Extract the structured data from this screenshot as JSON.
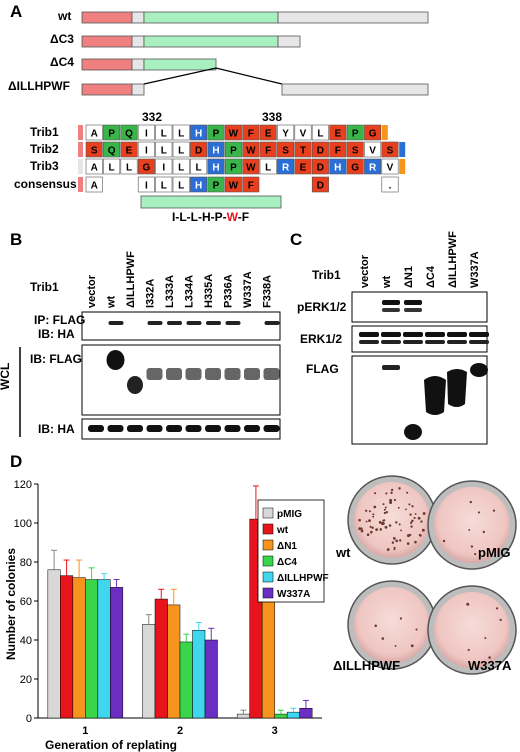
{
  "panels": {
    "a": "A",
    "b": "B",
    "c": "C",
    "d": "D"
  },
  "panelA": {
    "constructs": [
      "wt",
      "ΔC3",
      "ΔC4",
      "ΔILLHPWF"
    ],
    "positions": [
      "332",
      "338"
    ],
    "rows": [
      "Trib1",
      "Trib2",
      "Trib3",
      "consensus"
    ],
    "sequences": {
      "Trib1": [
        "A",
        "P",
        "Q",
        "I",
        "L",
        "L",
        "H",
        "P",
        "W",
        "F",
        "E",
        "Y",
        "V",
        "L",
        "E",
        "P",
        "G"
      ],
      "Trib2": [
        "S",
        "Q",
        "E",
        "I",
        "L",
        "L",
        "D",
        "H",
        "P",
        "W",
        "F",
        "S",
        "T",
        "D",
        "F",
        "S",
        "V",
        "S"
      ],
      "Trib3": [
        "A",
        "L",
        "L",
        "G",
        "I",
        "L",
        "L",
        "H",
        "P",
        "W",
        "L",
        "R",
        "E",
        "D",
        "H",
        "G",
        "R",
        "V"
      ],
      "consensus": [
        "A",
        "I",
        "L",
        "L",
        "H",
        "P",
        "W",
        "F",
        "D",
        "."
      ]
    },
    "motif": [
      "I-L-L-H-P-",
      "W",
      "-F"
    ]
  },
  "panelB": {
    "row_label": "Trib1",
    "lanes": [
      "vector",
      "wt",
      "ΔILLHPWF",
      "I332A",
      "L333A",
      "L334A",
      "H335A",
      "P336A",
      "W337A",
      "F338A"
    ],
    "blots": [
      "IP: FLAG",
      "IB: HA",
      "IB: FLAG",
      "IB: HA"
    ],
    "wcl": "WCL"
  },
  "panelC": {
    "row_label": "Trib1",
    "lanes": [
      "vector",
      "wt",
      "ΔN1",
      "ΔC4",
      "ΔILLHPWF",
      "W337A"
    ],
    "blots": [
      "pERK1/2",
      "ERK1/2",
      "FLAG"
    ]
  },
  "panelD": {
    "plate_labels": [
      "wt",
      "pMIG",
      "ΔILLHPWF",
      "W337A"
    ]
  },
  "chart_data": {
    "type": "bar",
    "categories": [
      "1",
      "2",
      "3"
    ],
    "xlabel": "Generation of replating",
    "ylabel": "Number of colonies",
    "ylim": [
      0,
      120
    ],
    "yticks": [
      0,
      20,
      40,
      60,
      80,
      100,
      120
    ],
    "legend_position": "top-right",
    "series": [
      {
        "name": "pMIG",
        "color": "#d8d8d8",
        "values": [
          76,
          48,
          2
        ],
        "errors": [
          10,
          5,
          2
        ]
      },
      {
        "name": "wt",
        "color": "#e8141b",
        "values": [
          73,
          61,
          102
        ],
        "errors": [
          8,
          5,
          17
        ]
      },
      {
        "name": "ΔN1",
        "color": "#f7941d",
        "values": [
          72,
          58,
          67
        ],
        "errors": [
          9,
          8,
          20
        ]
      },
      {
        "name": "ΔC4",
        "color": "#39d64a",
        "values": [
          71,
          39,
          2
        ],
        "errors": [
          6,
          4,
          2
        ]
      },
      {
        "name": "ΔILLHPWF",
        "color": "#3fd6ee",
        "values": [
          71,
          45,
          3
        ],
        "errors": [
          3,
          4,
          2
        ]
      },
      {
        "name": "W337A",
        "color": "#6a2fc2",
        "values": [
          67,
          40,
          5
        ],
        "errors": [
          4,
          6,
          4
        ]
      }
    ]
  }
}
